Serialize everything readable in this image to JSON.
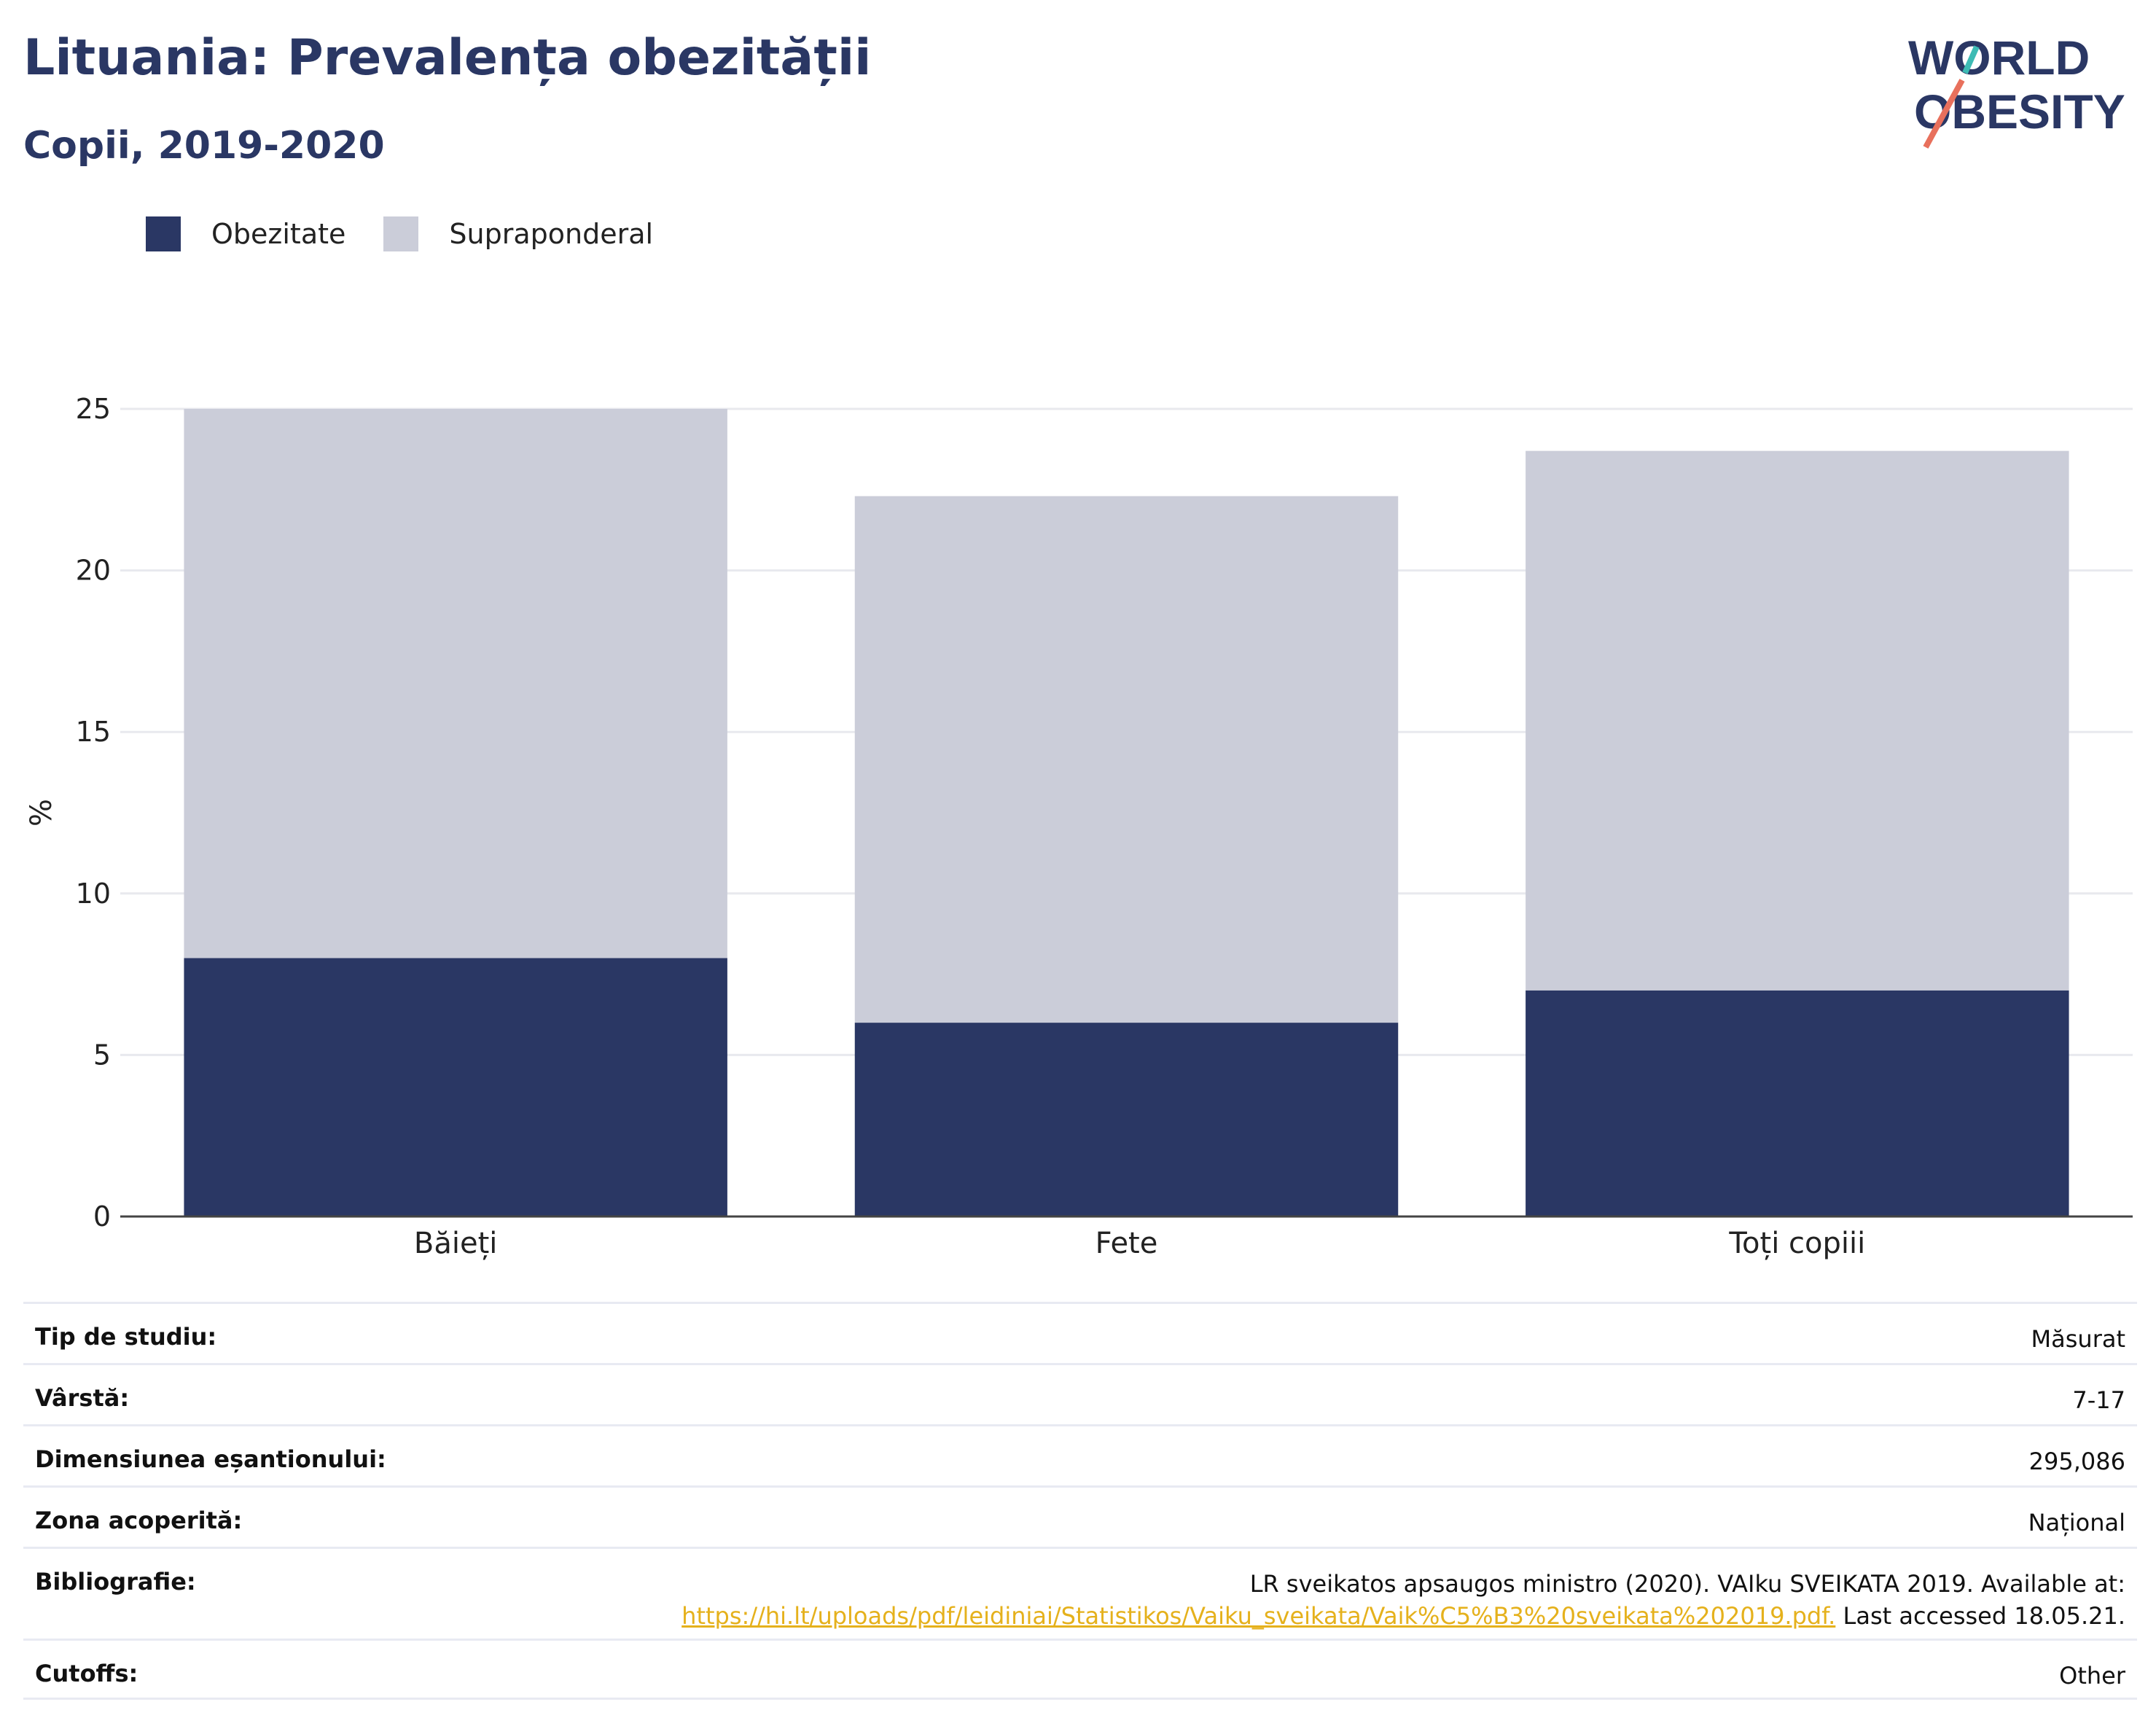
{
  "header": {
    "title": "Lituania: Prevalența obezității",
    "subtitle": "Copii, 2019-2020"
  },
  "logo": {
    "line1": "WORLD",
    "line2": "OBESITY"
  },
  "colors": {
    "obesity": "#2a3764",
    "overweight": "#cbcdd9",
    "title": "#2a3764",
    "link": "#e5b11c"
  },
  "chart_data": {
    "type": "bar",
    "stacked": true,
    "categories": [
      "Băieți",
      "Fete",
      "Toți copiii"
    ],
    "series": [
      {
        "name": "Obezitate",
        "values": [
          8,
          6,
          7
        ]
      },
      {
        "name": "Supraponderal",
        "values": [
          17,
          16.3,
          16.7
        ]
      }
    ],
    "ylabel": "%",
    "ylim": [
      0,
      25
    ],
    "yticks": [
      "0",
      "5",
      "10",
      "15",
      "20",
      "25"
    ],
    "grid": true,
    "legend": "top-left"
  },
  "info": {
    "rows": [
      {
        "key": "Tip de studiu:",
        "value": "Măsurat"
      },
      {
        "key": "Vârstă:",
        "value": "7-17"
      },
      {
        "key": "Dimensiunea eșantionului:",
        "value": "295,086"
      },
      {
        "key": "Zona acoperită:",
        "value": "Național"
      }
    ],
    "bibliography": {
      "key": "Bibliografie:",
      "text": "LR sveikatos apsaugos ministro (2020). VAIku SVEIKATA 2019. Available at:",
      "link": "https://hi.lt/uploads/pdf/leidiniai/Statistikos/Vaiku_sveikata/Vaik%C5%B3%20sveikata%202019.pdf.",
      "suffix": " Last accessed 18.05.21."
    },
    "cutoffs": {
      "key": "Cutoffs:",
      "value": "Other"
    }
  }
}
